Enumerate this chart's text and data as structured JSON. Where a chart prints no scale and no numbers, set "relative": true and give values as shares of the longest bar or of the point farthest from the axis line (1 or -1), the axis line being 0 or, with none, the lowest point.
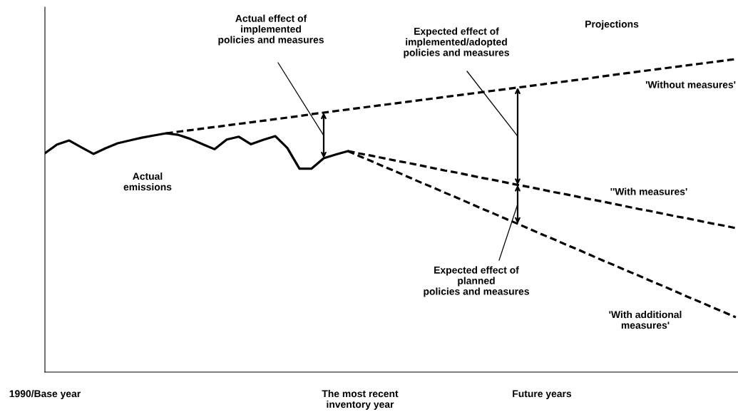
{
  "chart_data": {
    "type": "line",
    "relative": true,
    "grid": false,
    "legend": false,
    "tick_labels": "x",
    "categories": [
      "1990/Base year",
      null,
      null,
      null,
      null,
      null,
      null,
      null,
      null,
      null,
      null,
      null,
      null,
      null,
      null,
      null,
      null,
      null,
      null,
      null,
      null,
      null,
      null,
      null,
      null,
      null,
      "The most recent\ninventory year",
      null,
      null,
      null,
      null,
      null,
      null,
      null,
      null,
      null,
      null,
      null,
      null,
      null,
      null,
      "Future years",
      null,
      null,
      null,
      null,
      null,
      null,
      null,
      null,
      null,
      null,
      null,
      null,
      null,
      null,
      null,
      null
    ],
    "series": [
      {
        "name": "Actual\nemissions",
        "color": "#000000",
        "line_style": "solid",
        "values": [
          0.699,
          0.727,
          0.74,
          0.718,
          0.697,
          0.715,
          0.731,
          0.74,
          0.749,
          0.756,
          0.763,
          0.758,
          0.745,
          0.728,
          0.712,
          0.743,
          0.752,
          0.728,
          0.742,
          0.754,
          0.716,
          0.65,
          0.65,
          0.683,
          0.695,
          0.706,
          null,
          null,
          null,
          null,
          null,
          null,
          null,
          null,
          null,
          null,
          null,
          null,
          null,
          null,
          null,
          null,
          null,
          null,
          null,
          null,
          null,
          null,
          null,
          null,
          null,
          null,
          null,
          null,
          null,
          null,
          null,
          null
        ]
      },
      {
        "name": "'Without measures'",
        "color": "#000000",
        "line_style": "dashed",
        "values": [
          null,
          null,
          null,
          null,
          null,
          null,
          null,
          null,
          null,
          null,
          0.763,
          0.768,
          0.773,
          0.778,
          0.783,
          0.788,
          0.793,
          0.798,
          0.803,
          0.808,
          0.813,
          0.818,
          0.824,
          0.829,
          0.834,
          0.839,
          0.844,
          0.849,
          0.854,
          0.859,
          0.864,
          0.869,
          0.874,
          0.879,
          0.884,
          0.889,
          0.894,
          0.899,
          0.904,
          0.909,
          0.914,
          0.919,
          0.924,
          0.929,
          0.934,
          0.939,
          0.945,
          0.95,
          0.955,
          0.96,
          0.965,
          0.97,
          0.975,
          0.98,
          0.985,
          0.99,
          0.995,
          1.0
        ]
      },
      {
        "name": "''With measures'",
        "color": "#000000",
        "line_style": "dashed",
        "values": [
          null,
          null,
          null,
          null,
          null,
          null,
          null,
          null,
          null,
          null,
          null,
          null,
          null,
          null,
          null,
          null,
          null,
          null,
          null,
          null,
          null,
          null,
          null,
          null,
          null,
          0.706,
          0.698,
          0.691,
          0.683,
          0.675,
          0.668,
          0.66,
          0.652,
          0.644,
          0.637,
          0.629,
          0.621,
          0.614,
          0.606,
          0.598,
          0.591,
          0.583,
          0.575,
          0.568,
          0.56,
          0.552,
          0.545,
          0.537,
          0.529,
          0.521,
          0.514,
          0.506,
          0.498,
          0.491,
          0.483,
          0.475,
          0.468,
          0.46
        ]
      },
      {
        "name": "'With additional\nmeasures'",
        "color": "#000000",
        "line_style": "dashed",
        "values": [
          null,
          null,
          null,
          null,
          null,
          null,
          null,
          null,
          null,
          null,
          null,
          null,
          null,
          null,
          null,
          null,
          null,
          null,
          null,
          null,
          null,
          null,
          null,
          null,
          null,
          0.706,
          0.689,
          0.673,
          0.656,
          0.64,
          0.623,
          0.606,
          0.59,
          0.573,
          0.557,
          0.54,
          0.523,
          0.507,
          0.49,
          0.474,
          0.457,
          0.44,
          0.424,
          0.407,
          0.391,
          0.374,
          0.357,
          0.341,
          0.324,
          0.308,
          0.291,
          0.275,
          0.258,
          0.241,
          0.225,
          0.208,
          0.192,
          0.175
        ]
      }
    ],
    "annotations": [
      "Actual effect of\nimplemented\npolicies and measures",
      "Expected effect of\nimplemented/adopted\npolicies and measures",
      "Projections",
      "Expected effect of\nplanned\npolicies and measures"
    ]
  }
}
